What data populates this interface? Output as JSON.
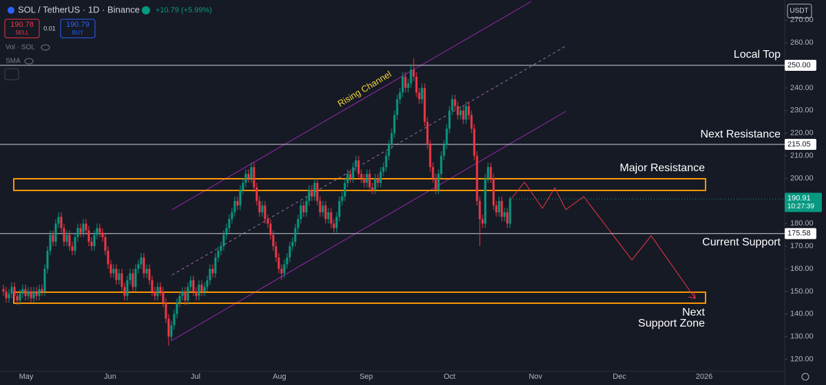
{
  "header": {
    "symbol": "SOL / TetherUS · 1D · Binance",
    "change": "+10.79 (+5.99%)",
    "sell_price": "190.78",
    "sell": "SELL",
    "spread": "0.01",
    "buy_price": "190.79",
    "buy": "BUY",
    "vol": "Vol · SOL",
    "sma": "SMA",
    "currency": "USDT"
  },
  "chart_data": {
    "type": "candlestick",
    "ylim": [
      114.7,
      278.9
    ],
    "yticks": [
      {
        "value": 120,
        "label": "120.00"
      },
      {
        "value": 130,
        "label": "130.00"
      },
      {
        "value": 140,
        "label": "140.00"
      },
      {
        "value": 150,
        "label": "150.00"
      },
      {
        "value": 160,
        "label": "160.00"
      },
      {
        "value": 170,
        "label": "170.00"
      },
      {
        "value": 180,
        "label": "180.00"
      },
      {
        "value": 190,
        "label": "190.00"
      },
      {
        "value": 200,
        "label": "200.00"
      },
      {
        "value": 210,
        "label": "210.00"
      },
      {
        "value": 220,
        "label": "220.00"
      },
      {
        "value": 230,
        "label": "230.00"
      },
      {
        "value": 240,
        "label": "240.00"
      },
      {
        "value": 250,
        "label": "250.00"
      },
      {
        "value": 260,
        "label": "260.00"
      },
      {
        "value": 270,
        "label": "270.00"
      }
    ],
    "xtick_labels": [
      "May",
      "Jun",
      "Jul",
      "Aug",
      "Sep",
      "Oct",
      "Nov",
      "Dec",
      "2026"
    ],
    "up_color": "#089981",
    "down_color": "#f23645",
    "grid": false,
    "price_lines": [
      {
        "value": 250,
        "label": "250.00"
      },
      {
        "value": 215.05,
        "label": "215.05"
      },
      {
        "value": 175.58,
        "label": "175.58"
      }
    ],
    "last_price": {
      "value": 190.91,
      "label": "190.91",
      "countdown": "10:27:39"
    },
    "annotations": {
      "channel": "Rising Channel",
      "local_top": "Local Top",
      "next_resistance": "Next Resistance",
      "major_resistance": "Major Resistance",
      "current_support": "Current Support",
      "next_support": [
        "Next",
        "Support Zone"
      ]
    },
    "ohlc": [
      [
        151,
        153,
        148,
        150
      ],
      [
        150,
        152,
        145,
        147
      ],
      [
        147,
        151,
        145,
        149
      ],
      [
        149,
        154,
        147,
        152
      ],
      [
        152,
        154,
        146,
        148
      ],
      [
        148,
        150,
        144,
        146
      ],
      [
        146,
        151,
        144,
        149
      ],
      [
        149,
        153,
        147,
        151
      ],
      [
        151,
        153,
        146,
        148
      ],
      [
        148,
        152,
        146,
        150
      ],
      [
        150,
        152,
        145,
        147
      ],
      [
        147,
        152,
        145,
        150
      ],
      [
        150,
        152,
        146,
        148
      ],
      [
        148,
        153,
        146,
        151
      ],
      [
        151,
        153,
        148,
        150
      ],
      [
        150,
        162,
        148,
        160
      ],
      [
        160,
        170,
        158,
        168
      ],
      [
        168,
        177,
        166,
        175
      ],
      [
        175,
        177,
        170,
        172
      ],
      [
        172,
        182,
        170,
        180
      ],
      [
        180,
        185,
        178,
        183
      ],
      [
        183,
        185,
        176,
        178
      ],
      [
        178,
        180,
        170,
        172
      ],
      [
        172,
        177,
        170,
        175
      ],
      [
        175,
        177,
        168,
        170
      ],
      [
        170,
        172,
        166,
        168
      ],
      [
        168,
        176,
        166,
        174
      ],
      [
        174,
        180,
        172,
        178
      ],
      [
        178,
        180,
        174,
        176
      ],
      [
        176,
        182,
        174,
        180
      ],
      [
        180,
        182,
        175,
        177
      ],
      [
        177,
        179,
        170,
        172
      ],
      [
        172,
        174,
        168,
        170
      ],
      [
        170,
        177,
        168,
        175
      ],
      [
        175,
        180,
        173,
        178
      ],
      [
        178,
        180,
        174,
        176
      ],
      [
        176,
        178,
        172,
        174
      ],
      [
        174,
        176,
        166,
        168
      ],
      [
        168,
        170,
        160,
        162
      ],
      [
        162,
        164,
        156,
        158
      ],
      [
        158,
        162,
        156,
        160
      ],
      [
        160,
        162,
        153,
        155
      ],
      [
        155,
        160,
        153,
        158
      ],
      [
        158,
        160,
        150,
        152
      ],
      [
        152,
        154,
        146,
        148
      ],
      [
        148,
        157,
        146,
        155
      ],
      [
        155,
        160,
        153,
        158
      ],
      [
        158,
        160,
        150,
        152
      ],
      [
        152,
        162,
        150,
        160
      ],
      [
        160,
        164,
        158,
        162
      ],
      [
        162,
        167,
        160,
        165
      ],
      [
        165,
        167,
        156,
        158
      ],
      [
        158,
        162,
        156,
        160
      ],
      [
        160,
        162,
        153,
        155
      ],
      [
        155,
        157,
        148,
        150
      ],
      [
        150,
        152,
        146,
        148
      ],
      [
        148,
        154,
        146,
        152
      ],
      [
        152,
        154,
        148,
        150
      ],
      [
        150,
        152,
        143,
        145
      ],
      [
        145,
        147,
        136,
        138
      ],
      [
        138,
        140,
        126,
        130
      ],
      [
        130,
        137,
        128,
        135
      ],
      [
        135,
        142,
        133,
        140
      ],
      [
        140,
        147,
        138,
        145
      ],
      [
        145,
        150,
        143,
        148
      ],
      [
        148,
        152,
        146,
        150
      ],
      [
        150,
        152,
        144,
        146
      ],
      [
        146,
        154,
        144,
        152
      ],
      [
        152,
        157,
        150,
        155
      ],
      [
        155,
        157,
        148,
        150
      ],
      [
        150,
        152,
        146,
        148
      ],
      [
        148,
        155,
        146,
        153
      ],
      [
        153,
        155,
        148,
        150
      ],
      [
        150,
        154,
        148,
        152
      ],
      [
        152,
        157,
        150,
        155
      ],
      [
        155,
        162,
        153,
        160
      ],
      [
        160,
        162,
        156,
        158
      ],
      [
        158,
        167,
        156,
        165
      ],
      [
        165,
        170,
        163,
        168
      ],
      [
        168,
        172,
        166,
        170
      ],
      [
        170,
        177,
        168,
        175
      ],
      [
        175,
        180,
        173,
        178
      ],
      [
        178,
        184,
        176,
        182
      ],
      [
        182,
        187,
        180,
        185
      ],
      [
        185,
        192,
        183,
        190
      ],
      [
        190,
        192,
        186,
        188
      ],
      [
        188,
        197,
        186,
        195
      ],
      [
        195,
        200,
        193,
        198
      ],
      [
        198,
        204,
        196,
        202
      ],
      [
        202,
        204,
        198,
        200
      ],
      [
        200,
        207,
        198,
        205
      ],
      [
        205,
        207,
        194,
        196
      ],
      [
        196,
        198,
        188,
        190
      ],
      [
        190,
        192,
        183,
        185
      ],
      [
        185,
        190,
        183,
        188
      ],
      [
        188,
        190,
        180,
        182
      ],
      [
        182,
        184,
        178,
        180
      ],
      [
        180,
        182,
        173,
        175
      ],
      [
        175,
        177,
        168,
        170
      ],
      [
        170,
        172,
        163,
        165
      ],
      [
        165,
        167,
        158,
        160
      ],
      [
        160,
        162,
        155,
        158
      ],
      [
        158,
        164,
        156,
        162
      ],
      [
        162,
        167,
        160,
        165
      ],
      [
        165,
        172,
        163,
        170
      ],
      [
        170,
        174,
        168,
        172
      ],
      [
        172,
        180,
        170,
        178
      ],
      [
        178,
        184,
        176,
        182
      ],
      [
        182,
        190,
        180,
        188
      ],
      [
        188,
        190,
        183,
        185
      ],
      [
        185,
        192,
        183,
        190
      ],
      [
        190,
        197,
        188,
        195
      ],
      [
        195,
        197,
        190,
        192
      ],
      [
        192,
        200,
        190,
        198
      ],
      [
        198,
        200,
        188,
        190
      ],
      [
        190,
        192,
        183,
        185
      ],
      [
        185,
        190,
        183,
        188
      ],
      [
        188,
        190,
        180,
        182
      ],
      [
        182,
        187,
        180,
        185
      ],
      [
        185,
        187,
        178,
        180
      ],
      [
        180,
        182,
        176,
        178
      ],
      [
        178,
        185,
        176,
        183
      ],
      [
        183,
        192,
        181,
        190
      ],
      [
        190,
        194,
        188,
        192
      ],
      [
        192,
        200,
        190,
        198
      ],
      [
        198,
        204,
        196,
        202
      ],
      [
        202,
        204,
        198,
        200
      ],
      [
        200,
        207,
        198,
        205
      ],
      [
        205,
        210,
        203,
        208
      ],
      [
        208,
        210,
        200,
        202
      ],
      [
        202,
        204,
        198,
        200
      ],
      [
        200,
        202,
        196,
        198
      ],
      [
        198,
        204,
        196,
        202
      ],
      [
        202,
        204,
        194,
        196
      ],
      [
        196,
        198,
        193,
        195
      ],
      [
        195,
        202,
        193,
        200
      ],
      [
        200,
        202,
        196,
        198
      ],
      [
        198,
        205,
        196,
        203
      ],
      [
        203,
        207,
        201,
        205
      ],
      [
        205,
        212,
        203,
        210
      ],
      [
        210,
        217,
        208,
        215
      ],
      [
        215,
        222,
        213,
        220
      ],
      [
        220,
        230,
        218,
        228
      ],
      [
        228,
        237,
        226,
        235
      ],
      [
        235,
        240,
        233,
        238
      ],
      [
        238,
        247,
        236,
        245
      ],
      [
        245,
        247,
        238,
        240
      ],
      [
        240,
        244,
        238,
        242
      ],
      [
        242,
        250,
        240,
        248
      ],
      [
        248,
        253,
        243,
        245
      ],
      [
        245,
        247,
        236,
        238
      ],
      [
        238,
        240,
        233,
        235
      ],
      [
        235,
        242,
        233,
        240
      ],
      [
        240,
        242,
        223,
        225
      ],
      [
        225,
        227,
        213,
        215
      ],
      [
        215,
        217,
        203,
        205
      ],
      [
        205,
        207,
        198,
        200
      ],
      [
        200,
        202,
        193,
        195
      ],
      [
        195,
        204,
        193,
        202
      ],
      [
        202,
        212,
        200,
        210
      ],
      [
        210,
        217,
        208,
        215
      ],
      [
        215,
        224,
        213,
        222
      ],
      [
        222,
        232,
        220,
        230
      ],
      [
        230,
        237,
        228,
        235
      ],
      [
        235,
        237,
        230,
        232
      ],
      [
        232,
        234,
        226,
        228
      ],
      [
        228,
        232,
        226,
        230
      ],
      [
        230,
        232,
        224,
        226
      ],
      [
        226,
        234,
        224,
        232
      ],
      [
        232,
        234,
        226,
        228
      ],
      [
        228,
        230,
        220,
        222
      ],
      [
        222,
        224,
        208,
        210
      ],
      [
        210,
        212,
        188,
        190
      ],
      [
        190,
        192,
        170,
        182
      ],
      [
        182,
        184,
        178,
        180
      ],
      [
        180,
        202,
        178,
        200
      ],
      [
        200,
        207,
        198,
        205
      ],
      [
        205,
        207,
        198,
        200
      ],
      [
        200,
        202,
        186,
        188
      ],
      [
        188,
        190,
        183,
        185
      ],
      [
        185,
        192,
        183,
        190
      ],
      [
        190,
        192,
        181,
        183
      ],
      [
        183,
        187,
        181,
        185
      ],
      [
        185,
        187,
        178,
        180
      ],
      [
        180,
        192,
        178,
        190.91
      ]
    ]
  }
}
